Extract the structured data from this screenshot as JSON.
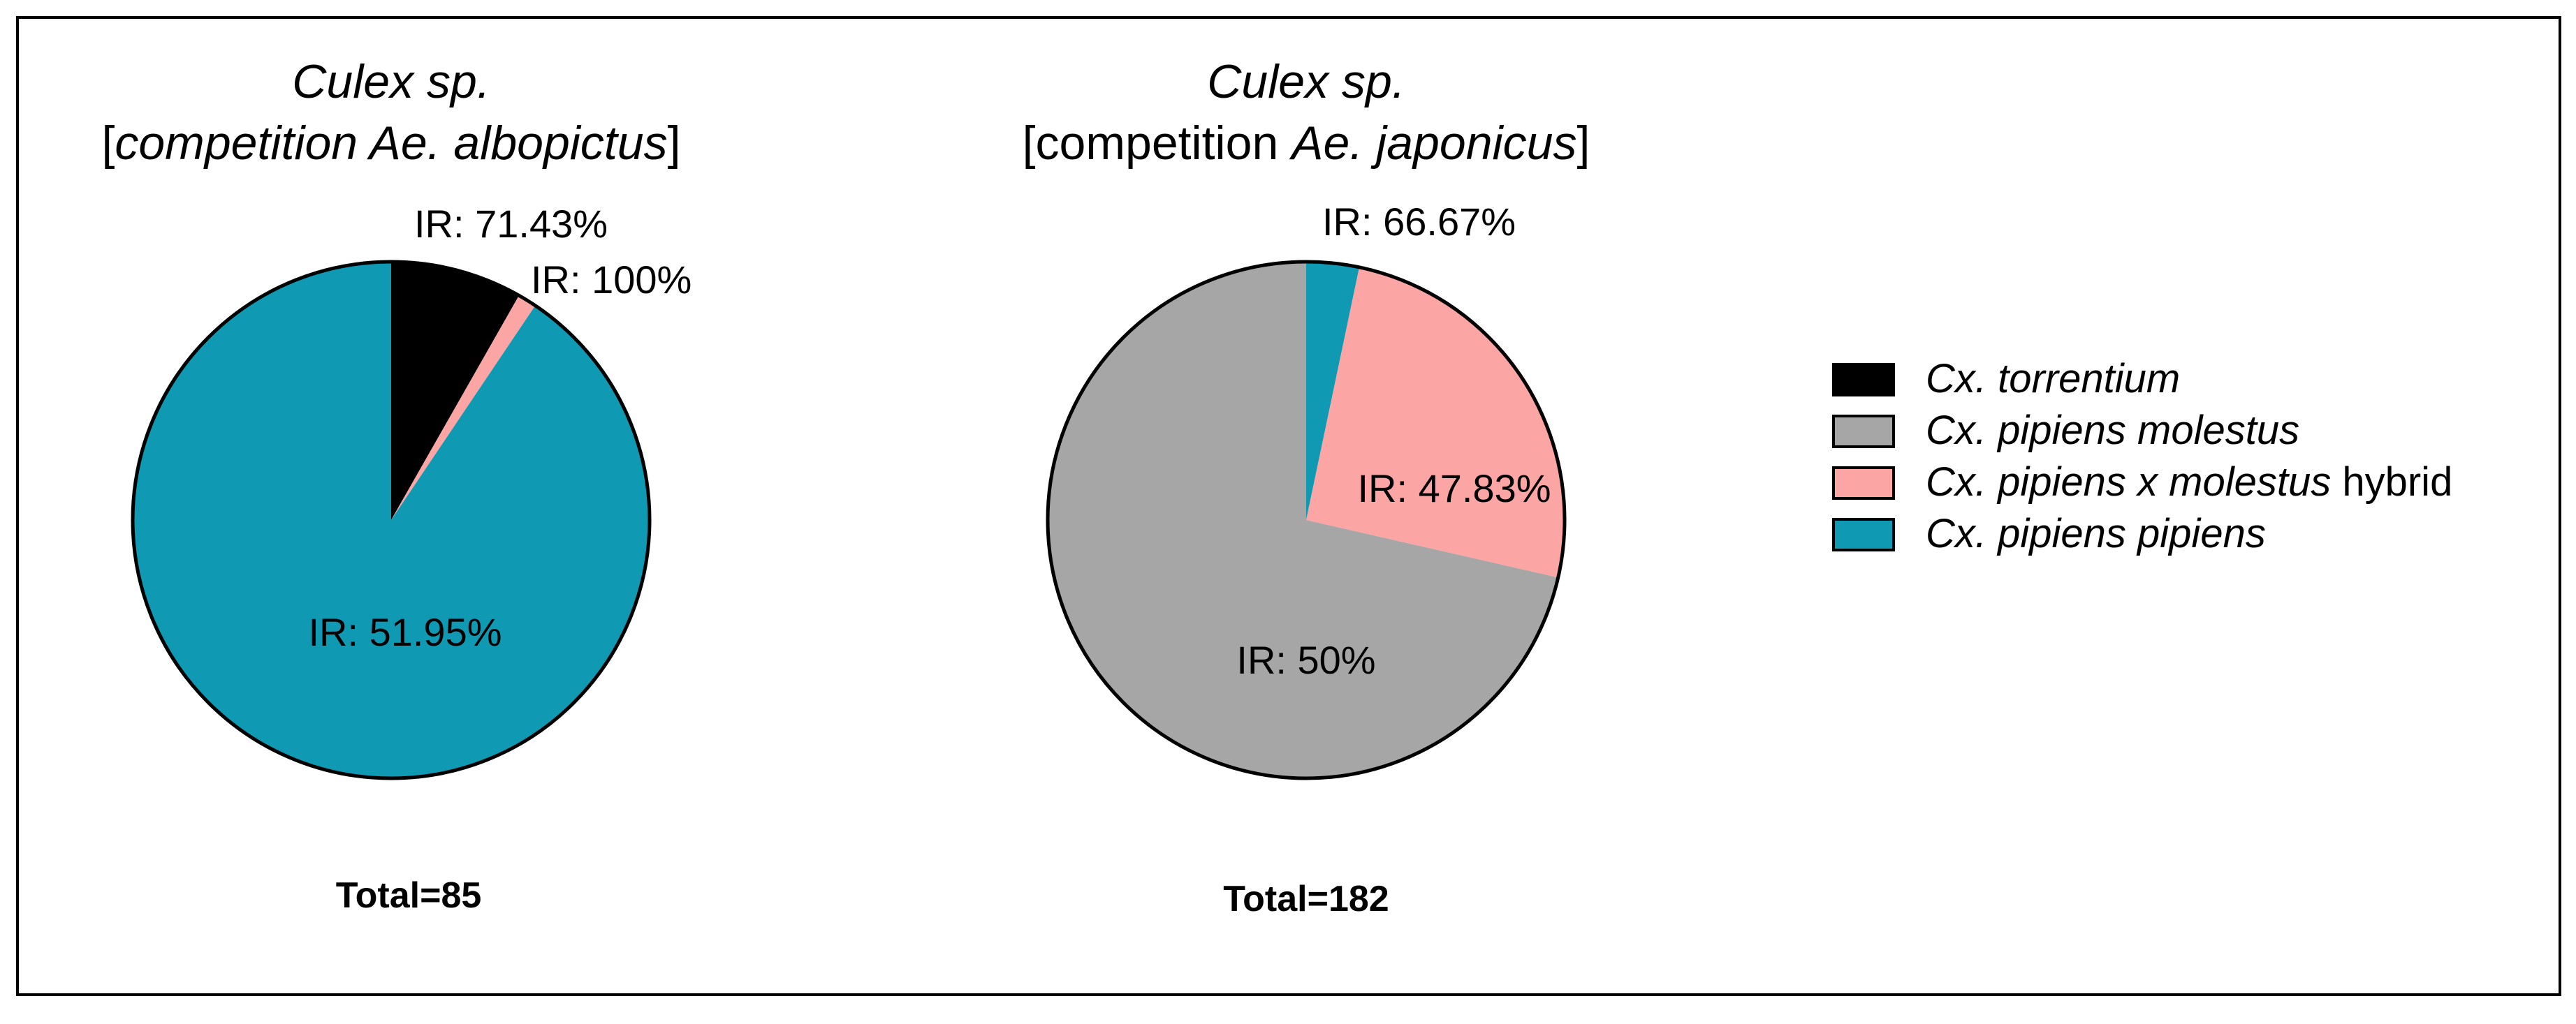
{
  "chart_data": [
    {
      "type": "pie",
      "title": [
        [
          {
            "t": "Culex sp.",
            "italic": true
          }
        ],
        [
          {
            "t": "[",
            "italic": false
          },
          {
            "t": "competition Ae. albopictus",
            "italic": true
          },
          {
            "t": "]",
            "italic": false
          }
        ]
      ],
      "slices": [
        {
          "series": "Cx. torrentium",
          "value": 7,
          "label": "IR: 71.43%"
        },
        {
          "series": "Cx. pipiens x molestus hybrid",
          "value": 1,
          "label": "IR: 100%"
        },
        {
          "series": "Cx. pipiens pipiens",
          "value": 77,
          "label": "IR: 51.95%"
        }
      ],
      "total_label": "Total=85"
    },
    {
      "type": "pie",
      "title": [
        [
          {
            "t": "Culex sp.",
            "italic": true
          }
        ],
        [
          {
            "t": "[competition ",
            "italic": false
          },
          {
            "t": "Ae. japonicus",
            "italic": true
          },
          {
            "t": "]",
            "italic": false
          }
        ]
      ],
      "slices": [
        {
          "series": "Cx. pipiens pipiens",
          "value": 6,
          "label": "IR: 66.67%"
        },
        {
          "series": "Cx. pipiens x molestus hybrid",
          "value": 46,
          "label": "IR: 47.83%"
        },
        {
          "series": "Cx. pipiens molestus",
          "value": 130,
          "label": "IR: 50%"
        }
      ],
      "total_label": "Total=182"
    }
  ],
  "legend": {
    "placement": "right",
    "entries": [
      {
        "series": "Cx. torrentium",
        "color": "#000000",
        "parts": [
          {
            "t": "Cx. torrentium",
            "italic": true
          }
        ]
      },
      {
        "series": "Cx. pipiens molestus",
        "color": "#a6a6a6",
        "parts": [
          {
            "t": "Cx. pipiens molestus",
            "italic": true
          }
        ]
      },
      {
        "series": "Cx. pipiens x molestus hybrid",
        "color": "#fca5a5",
        "parts": [
          {
            "t": "Cx. pipiens x molestus",
            "italic": true
          },
          {
            "t": " hybrid",
            "italic": false
          }
        ]
      },
      {
        "series": "Cx. pipiens pipiens",
        "color": "#1099b3",
        "parts": [
          {
            "t": "Cx. pipiens pipiens",
            "italic": true
          }
        ]
      }
    ]
  }
}
